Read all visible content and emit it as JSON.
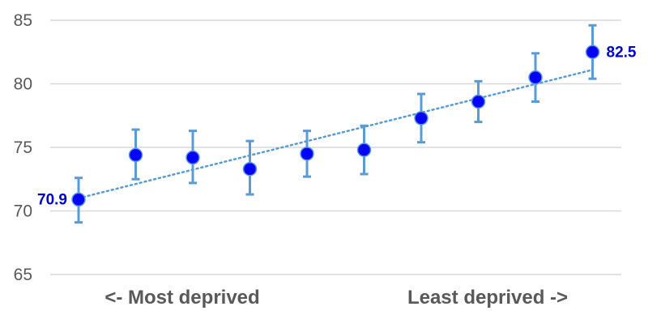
{
  "chart_data": {
    "type": "scatter",
    "y_ticks": [
      65,
      70,
      75,
      80,
      85
    ],
    "ylim": [
      65,
      85
    ],
    "grid": true,
    "series": [
      {
        "x": [
          1,
          2,
          3,
          4,
          5,
          6,
          7,
          8,
          9,
          10
        ],
        "values": [
          70.9,
          74.4,
          74.2,
          73.3,
          74.5,
          74.8,
          77.3,
          78.6,
          80.5,
          82.5
        ],
        "error_low": [
          69.1,
          72.5,
          72.2,
          71.3,
          72.7,
          72.9,
          75.4,
          77.0,
          78.6,
          80.4
        ],
        "error_high": [
          72.6,
          76.4,
          76.3,
          75.5,
          76.3,
          76.7,
          79.2,
          80.2,
          82.4,
          84.6
        ]
      }
    ],
    "trendline": {
      "style": "dotted",
      "start": 71.0,
      "end": 81.1
    },
    "data_labels": [
      {
        "index": 0,
        "text": "70.9",
        "side": "left"
      },
      {
        "index": 9,
        "text": "82.5",
        "side": "right"
      }
    ],
    "x_annotations": {
      "left": "<- Most deprived",
      "right": "Least deprived ->"
    },
    "colors": {
      "point": "#0000ff",
      "point_outline": "#5b9bd5",
      "error_bar": "#5b9bd5",
      "trendline": "#5b9bd5",
      "data_label": "#0000cc",
      "gridline": "#d9d9d9",
      "text": "#595959"
    }
  }
}
